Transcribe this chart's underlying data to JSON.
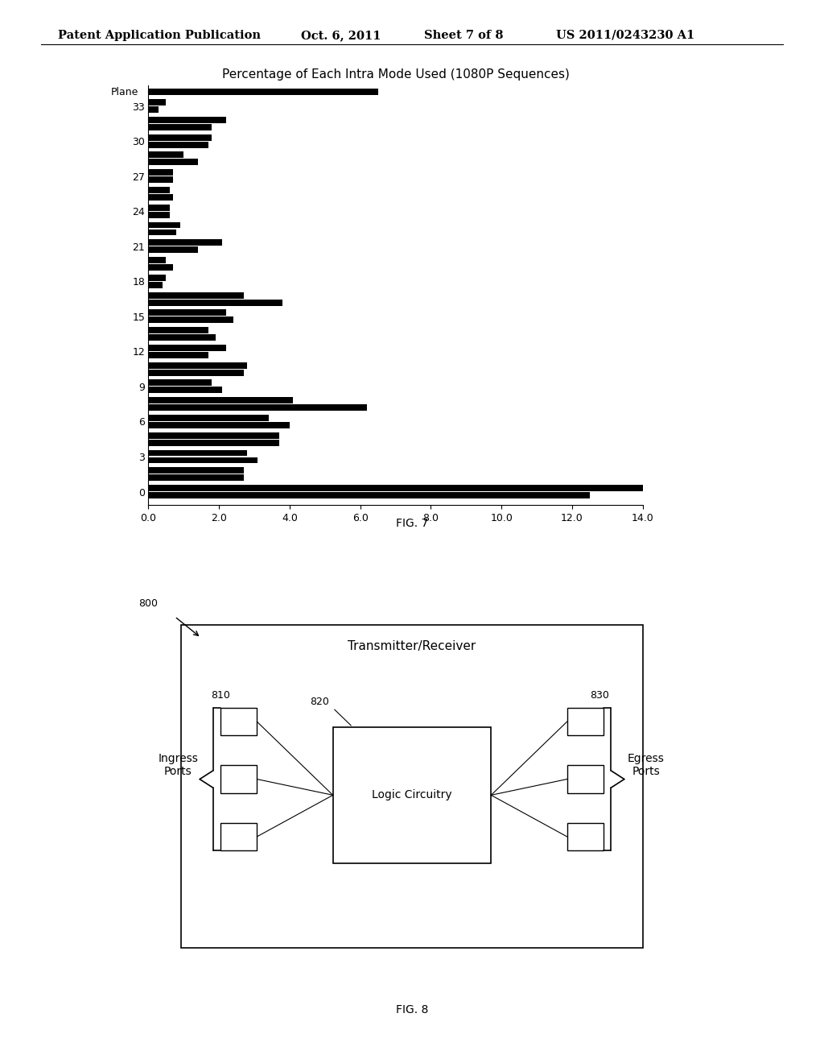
{
  "title": "Percentage of Each Intra Mode Used (1080P Sequences)",
  "background_color": "#ffffff",
  "xlim": [
    0.0,
    14.0
  ],
  "xticks": [
    0.0,
    2.0,
    4.0,
    6.0,
    8.0,
    10.0,
    12.0,
    14.0
  ],
  "header_text": "Patent Application Publication",
  "header_date": "Oct. 6, 2011",
  "header_sheet": "Sheet 7 of 8",
  "header_patent": "US 2011/0243230 A1",
  "bar_rows": [
    [
      "Plane",
      [
        6.5
      ]
    ],
    [
      "33",
      [
        0.3,
        0.5
      ]
    ],
    [
      "",
      [
        1.8,
        2.2
      ]
    ],
    [
      "30",
      [
        1.7,
        1.8
      ]
    ],
    [
      "",
      [
        1.4,
        1.0
      ]
    ],
    [
      "27",
      [
        0.7,
        0.7
      ]
    ],
    [
      "",
      [
        0.7,
        0.6
      ]
    ],
    [
      "24",
      [
        0.6,
        0.6
      ]
    ],
    [
      "",
      [
        0.8,
        0.9
      ]
    ],
    [
      "21",
      [
        1.4,
        2.1
      ]
    ],
    [
      "",
      [
        0.7,
        0.5
      ]
    ],
    [
      "18",
      [
        0.4,
        0.5
      ]
    ],
    [
      "",
      [
        3.8,
        2.7
      ]
    ],
    [
      "15",
      [
        2.4,
        2.2
      ]
    ],
    [
      "",
      [
        1.9,
        1.7
      ]
    ],
    [
      "12",
      [
        1.7,
        2.2
      ]
    ],
    [
      "",
      [
        2.7,
        2.8
      ]
    ],
    [
      "9",
      [
        2.1,
        1.8
      ]
    ],
    [
      "",
      [
        6.2,
        4.1
      ]
    ],
    [
      "6",
      [
        4.0,
        3.4
      ]
    ],
    [
      "",
      [
        3.7,
        3.7
      ]
    ],
    [
      "3",
      [
        3.1,
        2.8
      ]
    ],
    [
      "",
      [
        2.7,
        2.7
      ]
    ],
    [
      "0",
      [
        12.5,
        14.1
      ]
    ]
  ]
}
